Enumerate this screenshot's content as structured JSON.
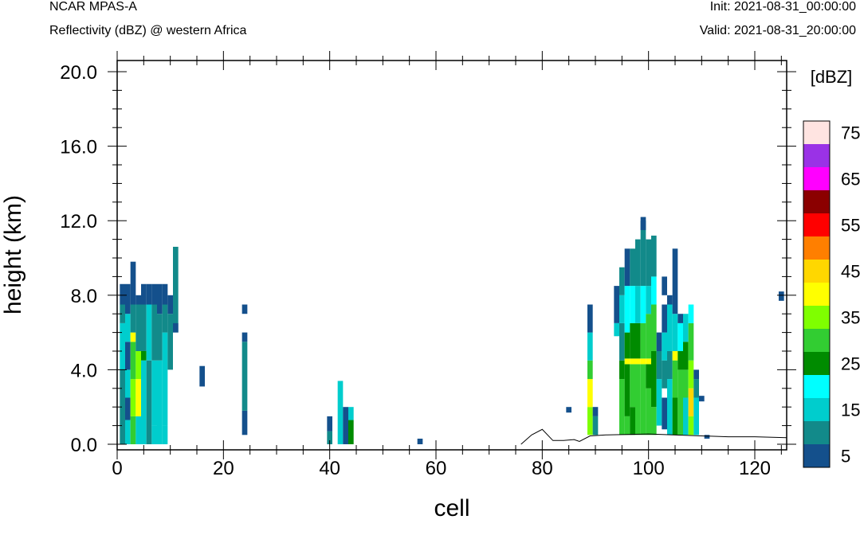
{
  "header": {
    "left_title": "NCAR MPAS-A",
    "left_subtitle": "Reflectivity (dBZ) @ western Africa",
    "init": "Init: 2021-08-31_00:00:00",
    "valid": "Valid: 2021-08-31_20:00:00"
  },
  "chart_data": {
    "type": "heatmap",
    "title": "Reflectivity (dBZ) @ western Africa",
    "xlabel": "cell",
    "ylabel": "height (km)",
    "xlim": [
      0,
      126
    ],
    "ylim": [
      -0.3,
      20.6
    ],
    "xticks": [
      0,
      20,
      40,
      60,
      80,
      100,
      120
    ],
    "xtick_labels": [
      "0",
      "20",
      "40",
      "60",
      "80",
      "100",
      "120"
    ],
    "yticks": [
      0,
      4,
      8,
      12,
      16,
      20
    ],
    "ytick_labels": [
      "0.0",
      "4.0",
      "8.0",
      "12.0",
      "16.0",
      "20.0"
    ],
    "grid": false,
    "colorbar": {
      "unit_label": "[dBZ]",
      "levels": [
        5,
        10,
        15,
        20,
        25,
        30,
        35,
        40,
        45,
        50,
        55,
        60,
        65,
        70,
        75
      ],
      "colors": [
        "#14508c",
        "#128a8a",
        "#00cdcd",
        "#00ffff",
        "#008b00",
        "#32cd32",
        "#7fff00",
        "#ffff00",
        "#ffd700",
        "#ff7f00",
        "#ff0000",
        "#8b0000",
        "#ff00ff",
        "#9a32e6",
        "#ffe4e1"
      ],
      "tick_labels": [
        "5",
        "15",
        "25",
        "35",
        "45",
        "55",
        "65",
        "75"
      ]
    },
    "terrain": [
      [
        76,
        0.0
      ],
      [
        78,
        0.5
      ],
      [
        80,
        0.8
      ],
      [
        82,
        0.2
      ],
      [
        84,
        0.2
      ],
      [
        86,
        0.25
      ],
      [
        87,
        0.15
      ],
      [
        89,
        0.45
      ],
      [
        92,
        0.5
      ],
      [
        100,
        0.55
      ],
      [
        110,
        0.45
      ],
      [
        115,
        0.4
      ],
      [
        120,
        0.4
      ],
      [
        126,
        0.35
      ]
    ],
    "columns": [
      {
        "x": 1,
        "bins": [
          [
            0,
            4,
            1
          ],
          [
            4,
            6.5,
            2
          ],
          [
            6.5,
            7.5,
            1
          ],
          [
            7.5,
            8.6,
            0
          ]
        ]
      },
      {
        "x": 2,
        "bins": [
          [
            0,
            1.3,
            2
          ],
          [
            1.3,
            2.5,
            0
          ],
          [
            2.5,
            4,
            2
          ],
          [
            4,
            5.5,
            0
          ],
          [
            5.5,
            7,
            2
          ],
          [
            7,
            8.6,
            0
          ]
        ]
      },
      {
        "x": 3,
        "bins": [
          [
            0,
            1.5,
            5
          ],
          [
            1.5,
            3.5,
            6
          ],
          [
            3.5,
            5.5,
            5
          ],
          [
            5.5,
            6,
            7
          ],
          [
            6,
            7.5,
            1
          ],
          [
            7.5,
            9.8,
            0
          ]
        ]
      },
      {
        "x": 4,
        "bins": [
          [
            0,
            1.5,
            2
          ],
          [
            1.5,
            3.5,
            7
          ],
          [
            3.5,
            5,
            6
          ],
          [
            5,
            7.5,
            1
          ],
          [
            7.5,
            8,
            0
          ]
        ]
      },
      {
        "x": 5,
        "bins": [
          [
            0,
            4.5,
            2
          ],
          [
            4.5,
            5,
            4
          ],
          [
            5,
            7.5,
            1
          ],
          [
            7.5,
            8.6,
            0
          ]
        ]
      },
      {
        "x": 6,
        "bins": [
          [
            0,
            4.5,
            1
          ],
          [
            4.5,
            7.5,
            2
          ],
          [
            7.5,
            8.6,
            0
          ]
        ]
      },
      {
        "x": 7,
        "bins": [
          [
            0,
            1,
            2
          ],
          [
            1,
            4.5,
            2
          ],
          [
            4.5,
            7.5,
            1
          ],
          [
            7.5,
            8.6,
            0
          ]
        ]
      },
      {
        "x": 8,
        "bins": [
          [
            0,
            4.5,
            2
          ],
          [
            4.5,
            7,
            1
          ],
          [
            7,
            8.6,
            0
          ]
        ]
      },
      {
        "x": 9,
        "bins": [
          [
            0,
            1,
            2
          ],
          [
            1,
            6,
            2
          ],
          [
            6,
            7.5,
            1
          ],
          [
            7.5,
            8.6,
            0
          ]
        ]
      },
      {
        "x": 10,
        "bins": [
          [
            4,
            7,
            1
          ],
          [
            7,
            8,
            0
          ]
        ]
      },
      {
        "x": 11,
        "bins": [
          [
            6,
            10.6,
            1
          ],
          [
            6,
            6.5,
            0
          ]
        ]
      },
      {
        "x": 16,
        "bins": [
          [
            3.1,
            4.2,
            0
          ]
        ]
      },
      {
        "x": 24,
        "bins": [
          [
            0.5,
            1.8,
            0
          ],
          [
            1.8,
            5.5,
            1
          ],
          [
            5.5,
            6,
            0
          ],
          [
            7,
            7.5,
            0
          ]
        ]
      },
      {
        "x": 40,
        "bins": [
          [
            0,
            0.7,
            1
          ],
          [
            0.7,
            1.5,
            0
          ]
        ]
      },
      {
        "x": 42,
        "bins": [
          [
            0,
            3.4,
            2
          ]
        ]
      },
      {
        "x": 43,
        "bins": [
          [
            0,
            2,
            0
          ]
        ]
      },
      {
        "x": 44,
        "bins": [
          [
            0,
            1.3,
            4
          ],
          [
            1.3,
            2,
            2
          ]
        ]
      },
      {
        "x": 57,
        "bins": [
          [
            0,
            0.3,
            0
          ]
        ]
      },
      {
        "x": 85,
        "bins": [
          [
            1.7,
            2,
            0
          ]
        ]
      },
      {
        "x": 89,
        "bins": [
          [
            0.5,
            2,
            6
          ],
          [
            2,
            3.5,
            7
          ],
          [
            3.5,
            4.5,
            5
          ],
          [
            4.5,
            6,
            2
          ],
          [
            6,
            7.5,
            0
          ]
        ]
      },
      {
        "x": 90,
        "bins": [
          [
            0.5,
            1.5,
            1
          ],
          [
            1.5,
            2,
            0
          ]
        ]
      },
      {
        "x": 94,
        "bins": [
          [
            6.5,
            8.5,
            0
          ],
          [
            5.8,
            6.5,
            2
          ]
        ]
      },
      {
        "x": 95,
        "bins": [
          [
            0.5,
            3.5,
            5
          ],
          [
            3.5,
            4.5,
            4
          ],
          [
            4.5,
            6.5,
            1
          ],
          [
            6.5,
            8,
            2
          ],
          [
            8,
            9.5,
            1
          ]
        ]
      },
      {
        "x": 96,
        "bins": [
          [
            0.5,
            1.5,
            5
          ],
          [
            1.5,
            4.3,
            4
          ],
          [
            4.3,
            4.6,
            7
          ],
          [
            4.6,
            6,
            4
          ],
          [
            6,
            8.5,
            3
          ],
          [
            8.5,
            10.5,
            0
          ]
        ]
      },
      {
        "x": 97,
        "bins": [
          [
            0.5,
            2,
            4
          ],
          [
            2,
            4.3,
            5
          ],
          [
            4.3,
            4.6,
            7
          ],
          [
            4.6,
            6.5,
            4
          ],
          [
            6.5,
            8.5,
            3
          ],
          [
            8.5,
            10.5,
            1
          ]
        ]
      },
      {
        "x": 98,
        "bins": [
          [
            0.5,
            4.3,
            5
          ],
          [
            4.3,
            4.6,
            7
          ],
          [
            4.6,
            6.5,
            4
          ],
          [
            6.5,
            8.5,
            2
          ],
          [
            8.5,
            11,
            1
          ]
        ]
      },
      {
        "x": 99,
        "bins": [
          [
            0.5,
            4.3,
            5
          ],
          [
            4.3,
            4.6,
            7
          ],
          [
            4.6,
            6.5,
            5
          ],
          [
            6.5,
            8.5,
            3
          ],
          [
            8.5,
            12,
            1
          ],
          [
            11.5,
            12.2,
            0
          ]
        ]
      },
      {
        "x": 100,
        "bins": [
          [
            0.5,
            3,
            5
          ],
          [
            3,
            4.3,
            4
          ],
          [
            4.3,
            4.6,
            7
          ],
          [
            4.6,
            7,
            5
          ],
          [
            7,
            8.5,
            2
          ],
          [
            8.5,
            11,
            1
          ]
        ]
      },
      {
        "x": 101,
        "bins": [
          [
            0.5,
            2,
            5
          ],
          [
            2,
            5,
            4
          ],
          [
            5,
            7.5,
            5
          ],
          [
            7.5,
            9,
            3
          ],
          [
            9,
            11.2,
            1
          ]
        ]
      },
      {
        "x": 102,
        "bins": [
          [
            1,
            3.5,
            2
          ],
          [
            3.5,
            5,
            1
          ],
          [
            5,
            6,
            0
          ]
        ]
      },
      {
        "x": 103,
        "bins": [
          [
            0.8,
            2.5,
            0
          ],
          [
            3,
            4.5,
            1
          ],
          [
            4.5,
            6,
            2
          ],
          [
            6,
            7.5,
            0
          ],
          [
            8,
            9,
            0
          ]
        ]
      },
      {
        "x": 104,
        "bins": [
          [
            0.5,
            3.5,
            2
          ],
          [
            3.5,
            5,
            1
          ],
          [
            5,
            7.5,
            2
          ],
          [
            7.5,
            8,
            0
          ]
        ]
      },
      {
        "x": 105,
        "bins": [
          [
            0.5,
            2.5,
            4
          ],
          [
            2.5,
            4.5,
            5
          ],
          [
            4.5,
            5,
            7
          ],
          [
            5,
            7,
            2
          ],
          [
            7,
            10.5,
            0
          ]
        ]
      },
      {
        "x": 106,
        "bins": [
          [
            0.5,
            4,
            5
          ],
          [
            4,
            5,
            4
          ],
          [
            5,
            6.5,
            3
          ],
          [
            6.5,
            7,
            0
          ]
        ]
      },
      {
        "x": 107,
        "bins": [
          [
            0.5,
            2.5,
            2
          ],
          [
            2.5,
            4,
            5
          ],
          [
            4,
            5.5,
            4
          ],
          [
            5.5,
            7,
            2
          ]
        ]
      },
      {
        "x": 108,
        "bins": [
          [
            0.5,
            1.5,
            6
          ],
          [
            1.5,
            3,
            8
          ],
          [
            3,
            4.5,
            6
          ],
          [
            4.5,
            6.5,
            5
          ],
          [
            6.5,
            7.5,
            3
          ]
        ]
      },
      {
        "x": 109,
        "bins": [
          [
            0.5,
            2.5,
            2
          ],
          [
            2.5,
            3.5,
            1
          ],
          [
            3.5,
            4,
            0
          ]
        ]
      },
      {
        "x": 110,
        "bins": [
          [
            2.3,
            2.6,
            0
          ]
        ]
      },
      {
        "x": 111,
        "bins": [
          [
            0.3,
            0.5,
            0
          ]
        ]
      },
      {
        "x": 125,
        "bins": [
          [
            7.7,
            8.2,
            0
          ]
        ]
      }
    ]
  }
}
